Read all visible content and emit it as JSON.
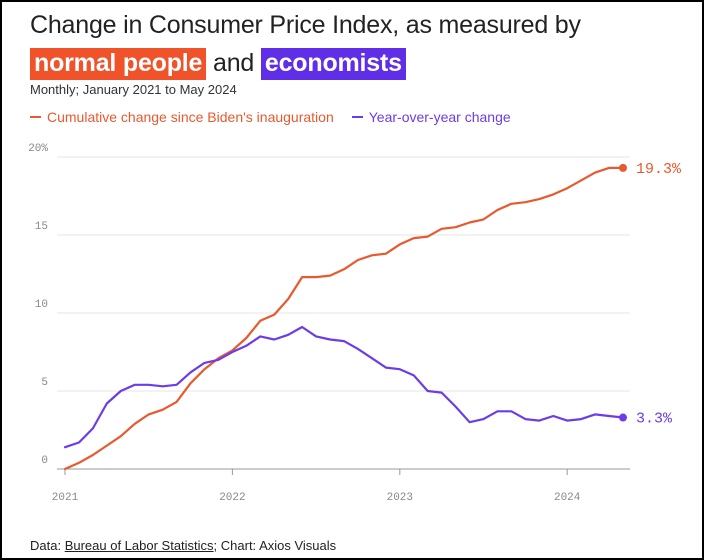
{
  "title": {
    "line1": "Change in Consumer Price Index, as measured by",
    "hl1": "normal people",
    "and": "and",
    "hl2": "economists"
  },
  "subtitle": "Monthly; January 2021 to May 2024",
  "legend": {
    "cumulative": "Cumulative change since Biden's inauguration",
    "yoy": "Year-over-year change"
  },
  "footer": {
    "prefix": "Data: ",
    "source": "Bureau of Labor Statistics",
    "suffix": "; Chart: Axios Visuals"
  },
  "colors": {
    "cumulative": "#e8592e",
    "yoy": "#6a3de8",
    "grid": "#e4e4e4",
    "axis": "#999999",
    "hl_normal": "#f0522a",
    "hl_econ": "#5f2ee6"
  },
  "chart_data": {
    "type": "line",
    "title": "Change in Consumer Price Index, as measured by normal people and economists",
    "subtitle": "Monthly; January 2021 to May 2024",
    "xlabel": "",
    "ylabel": "",
    "x": [
      "2021-01",
      "2021-02",
      "2021-03",
      "2021-04",
      "2021-05",
      "2021-06",
      "2021-07",
      "2021-08",
      "2021-09",
      "2021-10",
      "2021-11",
      "2021-12",
      "2022-01",
      "2022-02",
      "2022-03",
      "2022-04",
      "2022-05",
      "2022-06",
      "2022-07",
      "2022-08",
      "2022-09",
      "2022-10",
      "2022-11",
      "2022-12",
      "2023-01",
      "2023-02",
      "2023-03",
      "2023-04",
      "2023-05",
      "2023-06",
      "2023-07",
      "2023-08",
      "2023-09",
      "2023-10",
      "2023-11",
      "2023-12",
      "2024-01",
      "2024-02",
      "2024-03",
      "2024-04",
      "2024-05"
    ],
    "x_ticks": [
      "2021",
      "2022",
      "2023",
      "2024"
    ],
    "y_ticks": [
      0,
      5,
      10,
      15,
      20
    ],
    "y_tick_labels": [
      "0",
      "5",
      "10",
      "15",
      "20%"
    ],
    "ylim": [
      0,
      20
    ],
    "grid": true,
    "legend": "top-left",
    "series": [
      {
        "name": "Cumulative change since Biden's inauguration",
        "values": [
          0.0,
          0.4,
          0.9,
          1.5,
          2.1,
          2.9,
          3.5,
          3.8,
          4.3,
          5.5,
          6.4,
          7.1,
          7.6,
          8.4,
          9.5,
          9.9,
          10.9,
          12.3,
          12.3,
          12.4,
          12.8,
          13.4,
          13.7,
          13.8,
          14.4,
          14.8,
          14.9,
          15.4,
          15.5,
          15.8,
          16.0,
          16.6,
          17.0,
          17.1,
          17.3,
          17.6,
          18.0,
          18.5,
          19.0,
          19.3,
          19.3
        ],
        "end_label": "19.3%"
      },
      {
        "name": "Year-over-year change",
        "values": [
          1.4,
          1.7,
          2.6,
          4.2,
          5.0,
          5.4,
          5.4,
          5.3,
          5.4,
          6.2,
          6.8,
          7.0,
          7.5,
          7.9,
          8.5,
          8.3,
          8.6,
          9.1,
          8.5,
          8.3,
          8.2,
          7.7,
          7.1,
          6.5,
          6.4,
          6.0,
          5.0,
          4.9,
          4.0,
          3.0,
          3.2,
          3.7,
          3.7,
          3.2,
          3.1,
          3.4,
          3.1,
          3.2,
          3.5,
          3.4,
          3.3
        ],
        "end_label": "3.3%"
      }
    ]
  }
}
